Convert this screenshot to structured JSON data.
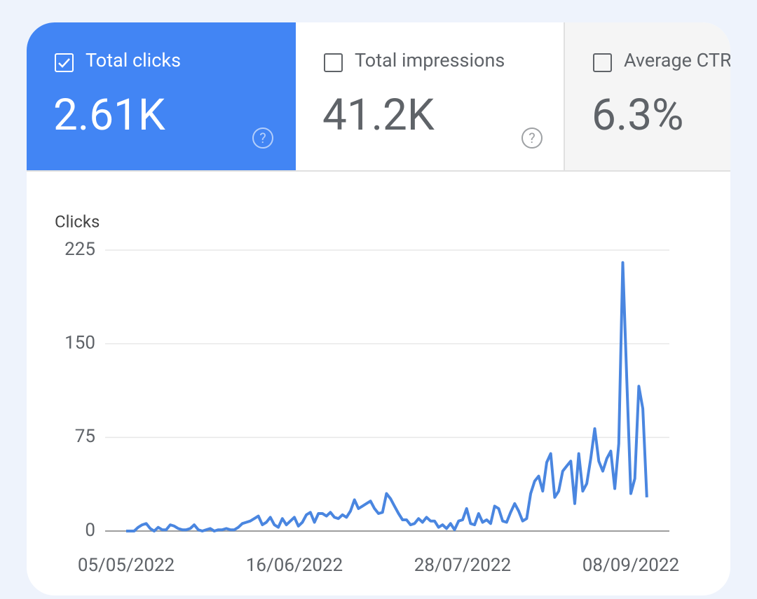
{
  "tabs": [
    {
      "label": "Total clicks",
      "value": "2.61K",
      "selected": true
    },
    {
      "label": "Total impressions",
      "value": "41.2K",
      "selected": false
    },
    {
      "label": "Average CTR",
      "value": "6.3%",
      "selected": false
    }
  ],
  "chart_data": {
    "type": "line",
    "y_label": "Clicks",
    "color": "#4a86e0",
    "categories": [
      "05/05/2022",
      null,
      null,
      null,
      null,
      null,
      null,
      null,
      null,
      null,
      null,
      null,
      null,
      null,
      null,
      null,
      null,
      null,
      null,
      null,
      null,
      null,
      null,
      null,
      null,
      null,
      null,
      null,
      null,
      null,
      null,
      null,
      null,
      null,
      null,
      null,
      null,
      null,
      null,
      null,
      null,
      null,
      "16/06/2022",
      null,
      null,
      null,
      null,
      null,
      null,
      null,
      null,
      null,
      null,
      null,
      null,
      null,
      null,
      null,
      null,
      null,
      null,
      null,
      null,
      null,
      null,
      null,
      null,
      null,
      null,
      null,
      null,
      null,
      null,
      null,
      null,
      null,
      null,
      null,
      null,
      null,
      null,
      null,
      null,
      null,
      "28/07/2022",
      null,
      null,
      null,
      null,
      null,
      null,
      null,
      null,
      null,
      null,
      null,
      null,
      null,
      null,
      null,
      null,
      null,
      null,
      null,
      null,
      null,
      null,
      null,
      null,
      null,
      null,
      null,
      null,
      null,
      null,
      null,
      null,
      null,
      null,
      null,
      null,
      null,
      null,
      null,
      null,
      null,
      "08/09/2022",
      null,
      null,
      null,
      null
    ],
    "values": [
      0,
      0,
      0,
      3,
      5,
      6,
      2,
      0,
      3,
      1,
      1,
      5,
      4,
      2,
      1,
      1,
      2,
      5,
      1,
      0,
      1,
      2,
      0,
      1,
      1,
      2,
      1,
      1,
      3,
      6,
      7,
      8,
      10,
      12,
      5,
      7,
      11,
      5,
      3,
      10,
      5,
      8,
      11,
      4,
      7,
      13,
      15,
      7,
      14,
      14,
      12,
      15,
      11,
      10,
      13,
      11,
      16,
      25,
      18,
      20,
      22,
      24,
      18,
      14,
      15,
      30,
      26,
      20,
      14,
      9,
      9,
      5,
      6,
      10,
      7,
      11,
      8,
      8,
      3,
      5,
      2,
      6,
      1,
      8,
      9,
      18,
      6,
      5,
      14,
      7,
      9,
      6,
      20,
      18,
      8,
      7,
      15,
      22,
      16,
      8,
      10,
      30,
      40,
      44,
      32,
      55,
      62,
      27,
      32,
      48,
      52,
      56,
      22,
      62,
      32,
      38,
      58,
      82,
      56,
      48,
      58,
      64,
      34,
      70,
      215,
      120,
      30,
      42,
      116,
      98,
      27
    ],
    "ylim": [
      0,
      225
    ],
    "yticks": [
      0,
      75,
      150,
      225
    ],
    "grid": true
  }
}
